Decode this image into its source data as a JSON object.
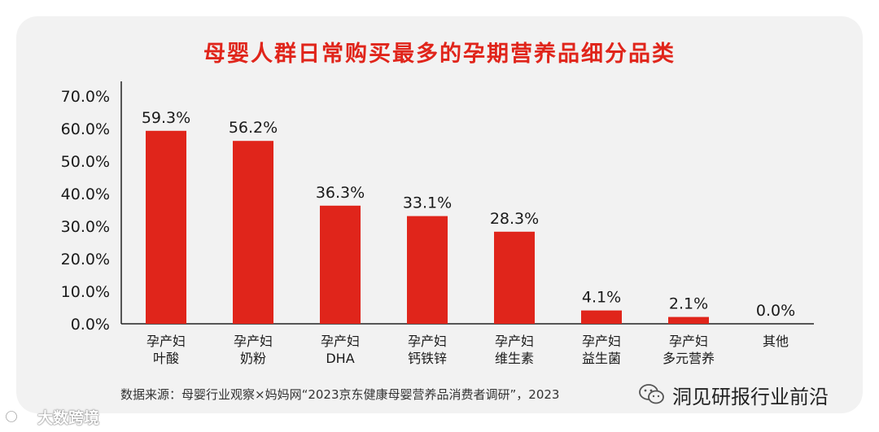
{
  "chart_data": {
    "type": "bar",
    "title": "母婴人群日常购买最多的孕期营养品细分品类",
    "categories": [
      [
        "孕产妇",
        "叶酸"
      ],
      [
        "孕产妇",
        "奶粉"
      ],
      [
        "孕产妇",
        "DHA"
      ],
      [
        "孕产妇",
        "钙铁锌"
      ],
      [
        "孕产妇",
        "维生素"
      ],
      [
        "孕产妇",
        "益生菌"
      ],
      [
        "孕产妇",
        "多元营养"
      ],
      [
        "其他"
      ]
    ],
    "values": [
      59.3,
      56.2,
      36.3,
      33.1,
      28.3,
      4.1,
      2.1,
      0.0
    ],
    "value_labels": [
      "59.3%",
      "56.2%",
      "36.3%",
      "33.1%",
      "28.3%",
      "4.1%",
      "2.1%",
      "0.0%"
    ],
    "ylim": [
      0,
      70
    ],
    "yticks": [
      "0.0%",
      "10.0%",
      "20.0%",
      "30.0%",
      "40.0%",
      "50.0%",
      "60.0%",
      "70.0%"
    ],
    "grid": false,
    "bar_color": "#e0251b"
  },
  "source": "数据来源：母婴行业观察×妈妈网“2023京东健康母婴营养品消费者调研”，2023",
  "watermark_right": "洞见研报行业前沿",
  "watermark_left": "大数跨境",
  "title_color": "#e0251b"
}
